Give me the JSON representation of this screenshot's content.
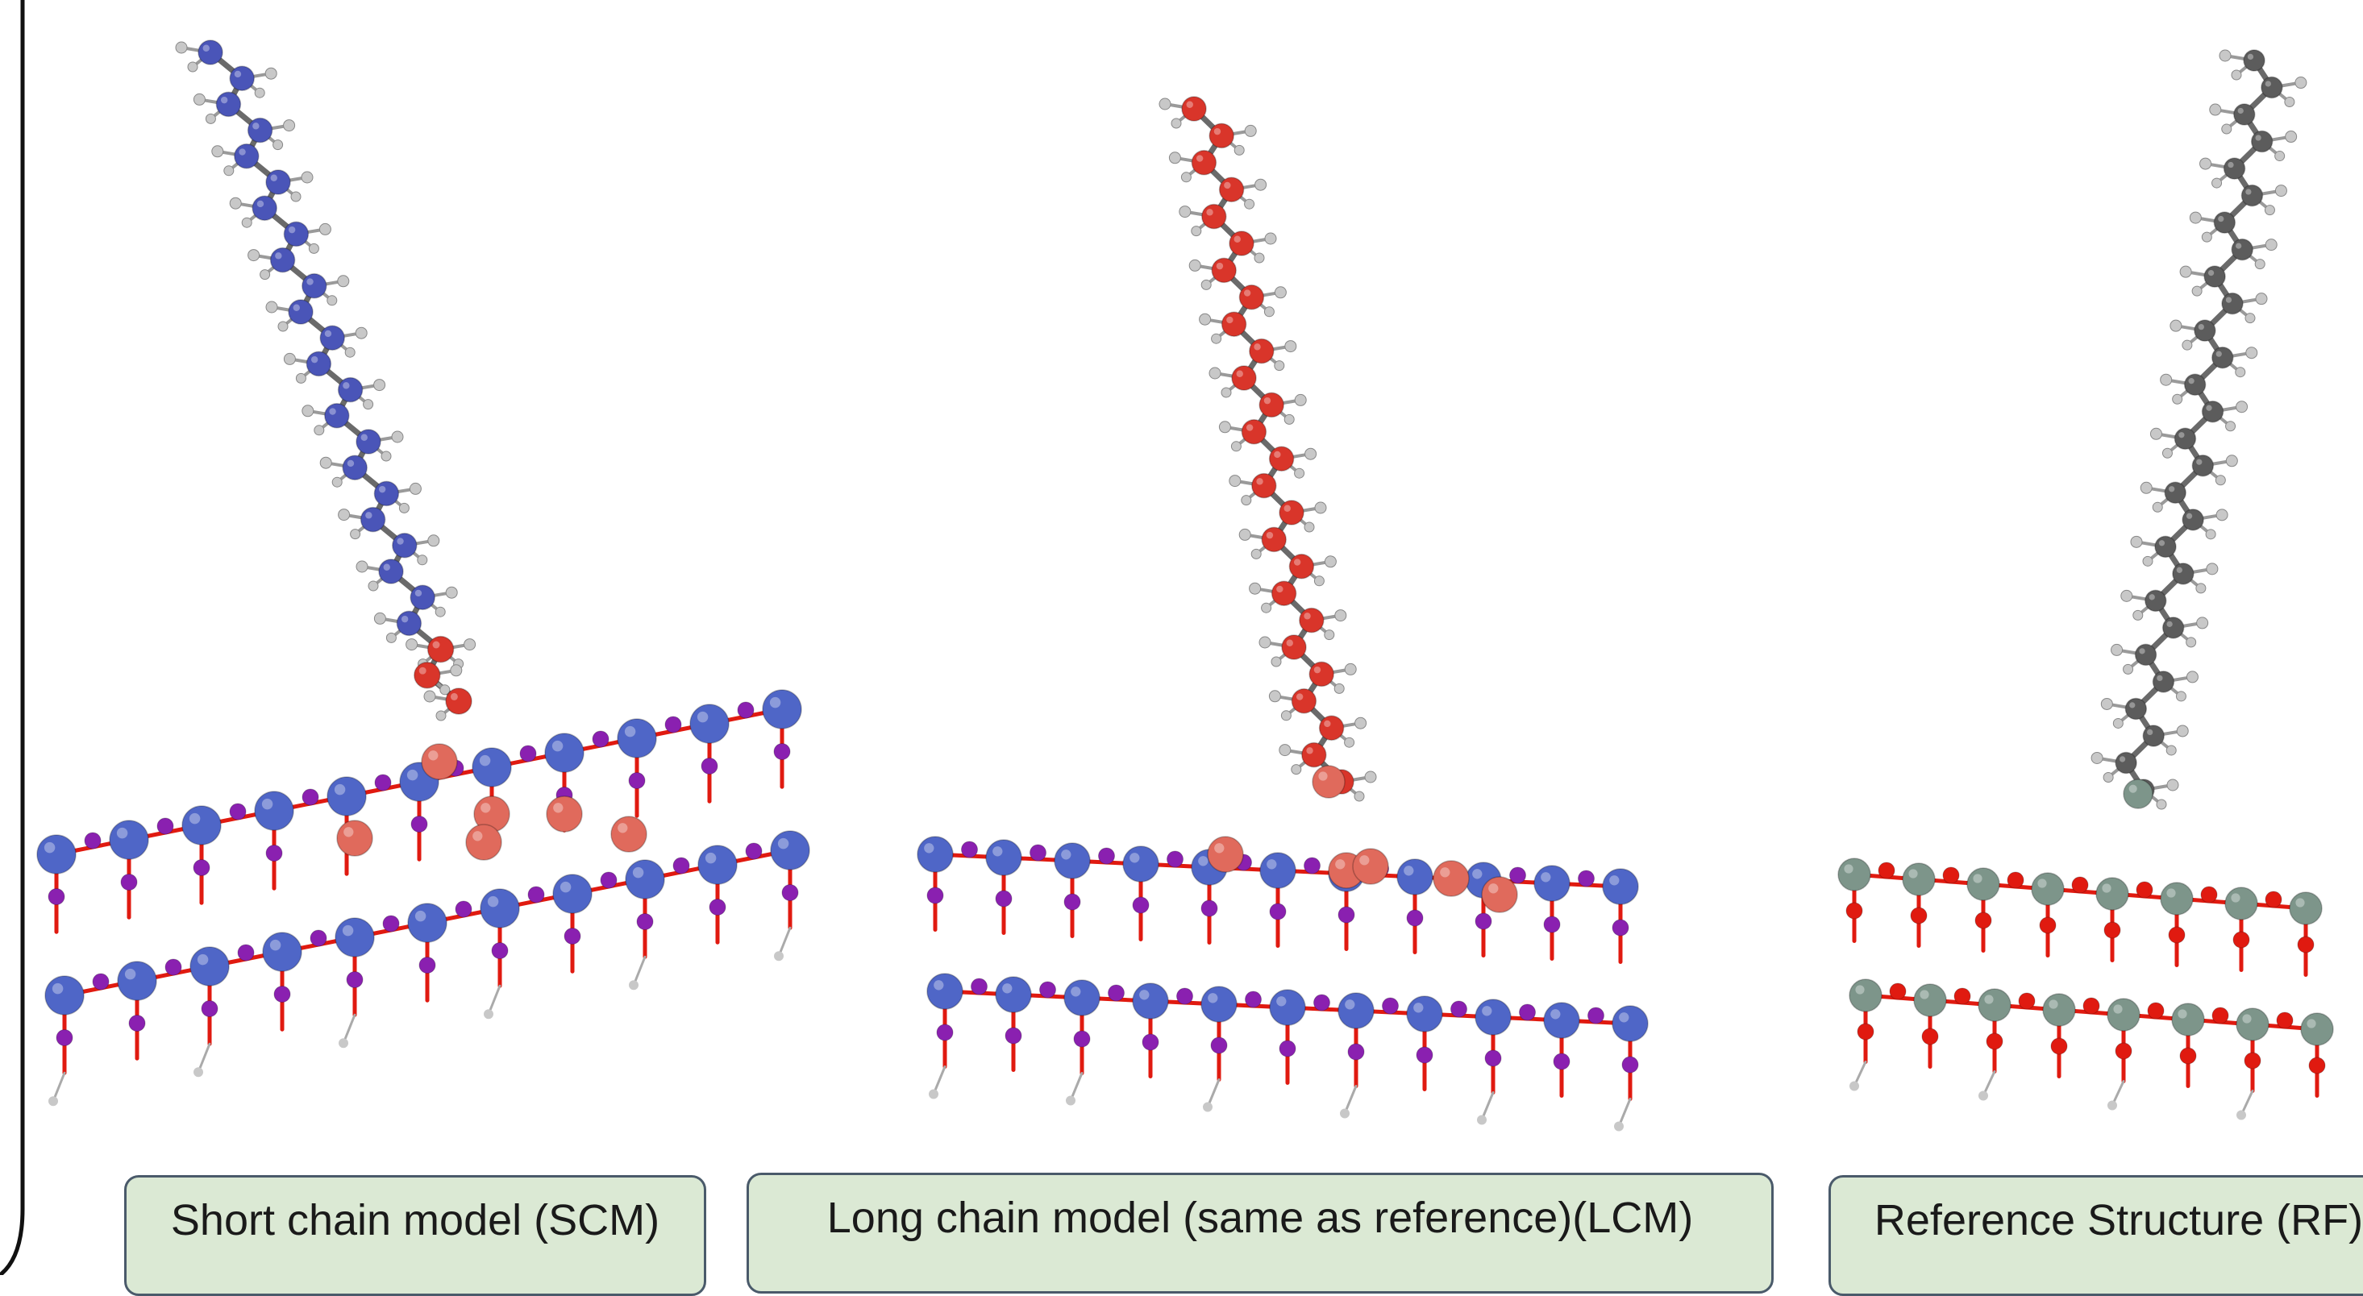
{
  "labels": {
    "scm": "Short chain model (SCM)",
    "lcm": "Long chain model (same as reference)(LCM)",
    "rf": "Reference Structure (RF)"
  },
  "palette": {
    "scm_chain_atom": "#4a55b8",
    "lcm_chain_atom": "#d9352a",
    "rf_chain_atom": "#5c5c5c",
    "hydrogen": "#c8c8c8",
    "metal_blue": "#4f66c7",
    "oxygen_purple": "#8a20b0",
    "oxygen_red": "#e01a10",
    "highlight_red": "#e06a5c",
    "rf_metal": "#7d958a",
    "bond_gray": "#6a6a6a",
    "label_fill": "#dbe9d4",
    "label_border": "#4a5a6a"
  }
}
